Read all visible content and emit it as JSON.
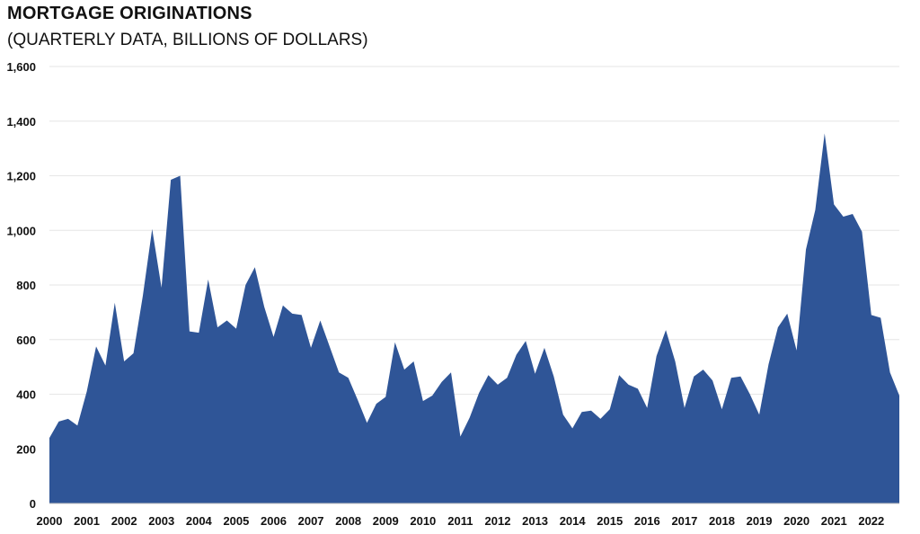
{
  "chart_data": {
    "type": "area",
    "title": "MORTGAGE ORIGINATIONS",
    "subtitle": "(QUARTERLY DATA, BILLIONS OF DOLLARS)",
    "xlabel": "",
    "ylabel": "",
    "ylim": [
      0,
      1600
    ],
    "yticks": [
      0,
      200,
      400,
      600,
      800,
      1000,
      1200,
      1400,
      1600
    ],
    "ytick_labels": [
      "0",
      "200",
      "400",
      "600",
      "800",
      "1,000",
      "1,200",
      "1,400",
      "1,600"
    ],
    "xticks": [
      "2000",
      "2001",
      "2002",
      "2003",
      "2004",
      "2005",
      "2006",
      "2007",
      "2008",
      "2009",
      "2010",
      "2011",
      "2012",
      "2013",
      "2014",
      "2015",
      "2016",
      "2017",
      "2018",
      "2019",
      "2020",
      "2021",
      "2022"
    ],
    "grid": true,
    "color": "#2f5597",
    "series": [
      {
        "values": [
          240,
          300,
          310,
          285,
          410,
          575,
          505,
          735,
          520,
          550,
          760,
          1005,
          790,
          1185,
          1200,
          630,
          625,
          820,
          645,
          670,
          640,
          800,
          865,
          720,
          610,
          725,
          695,
          690,
          570,
          670,
          575,
          480,
          460,
          380,
          295,
          365,
          390,
          590,
          490,
          520,
          375,
          395,
          445,
          480,
          245,
          315,
          405,
          470,
          435,
          460,
          545,
          595,
          475,
          570,
          465,
          325,
          275,
          335,
          340,
          310,
          345,
          470,
          435,
          420,
          350,
          540,
          635,
          520,
          350,
          465,
          490,
          450,
          345,
          460,
          465,
          400,
          325,
          510,
          645,
          695,
          560,
          930,
          1075,
          1355,
          1095,
          1050,
          1060,
          995,
          690,
          680,
          480,
          395
        ]
      }
    ]
  }
}
